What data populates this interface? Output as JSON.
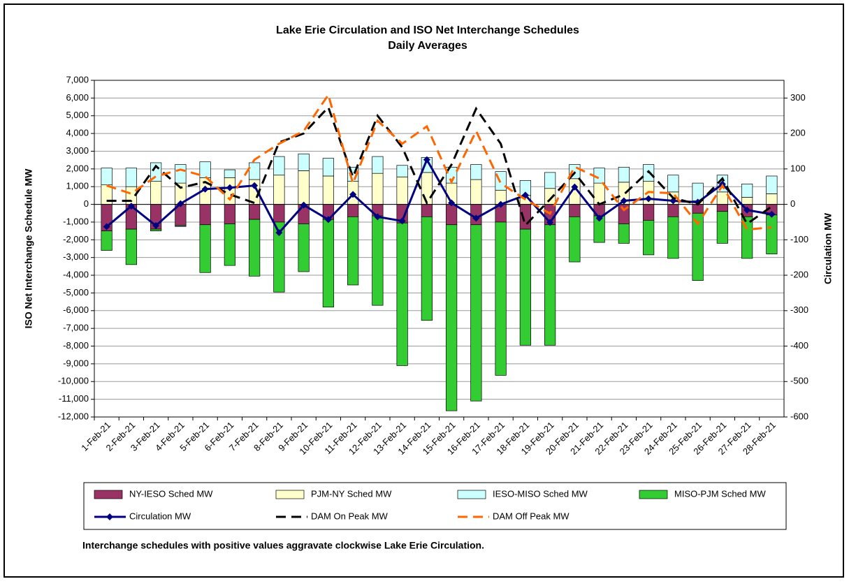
{
  "chart_data": {
    "type": "bar",
    "title": "Lake Erie Circulation and ISO Net Interchange Schedules",
    "subtitle": "Daily Averages",
    "y_label": "ISO Net Interchange Schedule MW",
    "y2_label": "Circulation MW",
    "note": "Interchange schedules with positive values aggravate clockwise Lake Erie Circulation.",
    "categories": [
      "1-Feb-21",
      "2-Feb-21",
      "3-Feb-21",
      "4-Feb-21",
      "5-Feb-21",
      "6-Feb-21",
      "7-Feb-21",
      "8-Feb-21",
      "9-Feb-21",
      "10-Feb-21",
      "11-Feb-21",
      "12-Feb-21",
      "13-Feb-21",
      "14-Feb-21",
      "15-Feb-21",
      "16-Feb-21",
      "17-Feb-21",
      "18-Feb-21",
      "19-Feb-21",
      "20-Feb-21",
      "21-Feb-21",
      "22-Feb-21",
      "23-Feb-21",
      "24-Feb-21",
      "25-Feb-21",
      "26-Feb-21",
      "27-Feb-21",
      "28-Feb-21"
    ],
    "stacked": true,
    "grid": true,
    "ylim": [
      -12000,
      7000
    ],
    "yticks": [
      {
        "value": 7000,
        "label": "7,000"
      },
      {
        "value": 6000,
        "label": "6,000"
      },
      {
        "value": 5000,
        "label": "5,000"
      },
      {
        "value": 4000,
        "label": "4,000"
      },
      {
        "value": 3000,
        "label": "3,000"
      },
      {
        "value": 2000,
        "label": "2,000"
      },
      {
        "value": 1000,
        "label": "1,000"
      },
      0,
      {
        "value": -1000,
        "label": "-1,000"
      },
      {
        "value": -2000,
        "label": "-2,000"
      },
      {
        "value": -3000,
        "label": "-3,000"
      },
      {
        "value": -4000,
        "label": "-4,000"
      },
      {
        "value": -5000,
        "label": "-5,000"
      },
      {
        "value": -6000,
        "label": "-6,000"
      },
      {
        "value": -7000,
        "label": "-7,000"
      },
      {
        "value": -8000,
        "label": "-8,000"
      },
      {
        "value": -9000,
        "label": "-9,000"
      },
      {
        "value": -10000,
        "label": "-10,000"
      },
      {
        "value": -11000,
        "label": "-11,000"
      },
      {
        "value": -12000,
        "label": "-12,000"
      }
    ],
    "y2lim": [
      -600,
      350
    ],
    "y2ticks": [
      300,
      200,
      100,
      0,
      -100,
      -200,
      -300,
      -400,
      -500,
      -600
    ],
    "series": [
      {
        "name": "NY-IESO Sched MW",
        "type": "bar",
        "color": "#993366",
        "values": [
          -1500,
          -1400,
          -1400,
          -1200,
          -1150,
          -1100,
          -850,
          -1000,
          -1100,
          -850,
          -700,
          -650,
          -1050,
          -700,
          -1150,
          -1150,
          -1000,
          -1400,
          -1150,
          -700,
          -650,
          -1100,
          -900,
          -700,
          -500,
          -400,
          -700,
          -600
        ]
      },
      {
        "name": "PJM-NY Sched MW",
        "type": "bar",
        "color": "#FFFFCC",
        "values": [
          1100,
          1000,
          1300,
          1200,
          1500,
          1500,
          1400,
          1650,
          1900,
          1600,
          1300,
          1750,
          1550,
          1800,
          1200,
          1400,
          800,
          500,
          900,
          1450,
          1200,
          1250,
          1300,
          700,
          200,
          700,
          400,
          600
        ]
      },
      {
        "name": "IESO-MISO Sched MW",
        "type": "bar",
        "color": "#CCFFFF",
        "values": [
          950,
          1050,
          1050,
          1050,
          900,
          450,
          950,
          1050,
          950,
          1000,
          800,
          950,
          650,
          850,
          900,
          850,
          1050,
          850,
          900,
          800,
          850,
          850,
          950,
          950,
          1000,
          950,
          750,
          1000
        ]
      },
      {
        "name": "MISO-PJM Sched MW",
        "type": "bar",
        "color": "#33CC33",
        "values": [
          -1100,
          -2000,
          -100,
          -50,
          -2700,
          -2350,
          -3200,
          -3950,
          -2700,
          -4950,
          -3850,
          -5050,
          -8050,
          -5850,
          -10500,
          -9950,
          -8650,
          -6550,
          -6800,
          -2550,
          -1500,
          -1100,
          -1950,
          -2350,
          -3800,
          -1800,
          -2350,
          -2200
        ]
      },
      {
        "name": "Circulation MW",
        "type": "line",
        "axis": "y2",
        "color": "#000080",
        "marker": true,
        "values": [
          -63,
          -5,
          -60,
          2,
          43,
          47,
          53,
          -80,
          -2,
          -43,
          28,
          -35,
          -47,
          126,
          4,
          -39,
          0,
          26,
          -51,
          49,
          -39,
          10,
          16,
          10,
          6,
          57,
          -16,
          -28
        ]
      },
      {
        "name": "DAM On Peak MW",
        "type": "line",
        "axis": "y2",
        "color": "#000000",
        "dashed": true,
        "values": [
          10,
          10,
          108,
          47,
          63,
          28,
          4,
          175,
          200,
          274,
          77,
          250,
          161,
          4,
          112,
          270,
          171,
          -59,
          14,
          89,
          0,
          28,
          93,
          18,
          0,
          73,
          -55,
          -6
        ]
      },
      {
        "name": "DAM Off Peak MW",
        "type": "line",
        "axis": "y2",
        "color": "#FF6600",
        "dashed": true,
        "values": [
          53,
          30,
          79,
          98,
          79,
          14,
          126,
          171,
          207,
          309,
          59,
          236,
          171,
          220,
          63,
          207,
          59,
          14,
          -26,
          106,
          73,
          -16,
          35,
          31,
          -55,
          53,
          -71,
          -65
        ]
      }
    ]
  }
}
